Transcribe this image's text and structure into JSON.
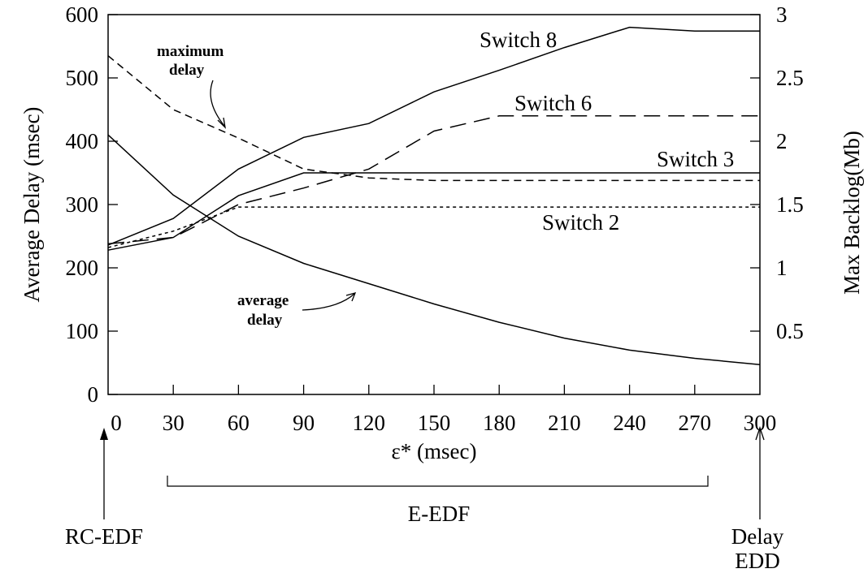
{
  "chart_data": {
    "type": "line",
    "xlabel": "ε* (msec)",
    "ylabel_left": "Average  Delay (msec)",
    "ylabel_right": "Max Backlog(Mb)",
    "xlim": [
      0,
      300
    ],
    "ylim_left": [
      0,
      600
    ],
    "ylim_right": [
      0,
      3
    ],
    "x_ticks": [
      0,
      30,
      60,
      90,
      120,
      150,
      180,
      210,
      240,
      270,
      300
    ],
    "y_ticks_left": [
      0,
      100,
      200,
      300,
      400,
      500,
      600
    ],
    "y_ticks_right": [
      0.5,
      1,
      1.5,
      2,
      2.5,
      3
    ],
    "grid": false,
    "series": [
      {
        "name": "Switch 8",
        "axis": "right",
        "style": "solid",
        "x": [
          0,
          30,
          60,
          90,
          120,
          150,
          180,
          210,
          240,
          270,
          300
        ],
        "y": [
          1.18,
          1.39,
          1.78,
          2.03,
          2.14,
          2.39,
          2.56,
          2.74,
          2.9,
          2.87,
          2.87
        ]
      },
      {
        "name": "Switch 6",
        "axis": "right",
        "style": "long-dash",
        "x": [
          0,
          30,
          60,
          90,
          120,
          150,
          180,
          210,
          240,
          270,
          300
        ],
        "y": [
          1.19,
          1.24,
          1.5,
          1.63,
          1.78,
          2.08,
          2.2,
          2.2,
          2.2,
          2.2,
          2.2
        ]
      },
      {
        "name": "Switch 3",
        "axis": "right",
        "style": "solid",
        "x": [
          0,
          30,
          60,
          90,
          120,
          150,
          180,
          210,
          240,
          270,
          300
        ],
        "y": [
          1.14,
          1.24,
          1.57,
          1.75,
          1.75,
          1.75,
          1.75,
          1.75,
          1.75,
          1.75,
          1.75
        ]
      },
      {
        "name": "Switch 2",
        "axis": "right",
        "style": "short-dash",
        "x": [
          0,
          30,
          60,
          90,
          120,
          150,
          180,
          210,
          240,
          270,
          300
        ],
        "y": [
          1.16,
          1.29,
          1.48,
          1.48,
          1.48,
          1.48,
          1.48,
          1.48,
          1.48,
          1.48,
          1.48
        ]
      },
      {
        "name": "maximum delay",
        "axis": "left",
        "style": "medium-dash",
        "x": [
          0,
          30,
          60,
          90,
          120,
          150,
          180,
          210,
          240,
          270,
          300
        ],
        "y": [
          535,
          450,
          405,
          356,
          342,
          338,
          338,
          338,
          338,
          338,
          338
        ]
      },
      {
        "name": "average delay",
        "axis": "left",
        "style": "solid",
        "x": [
          0,
          30,
          60,
          90,
          120,
          150,
          180,
          210,
          240,
          270,
          300
        ],
        "y": [
          410,
          315,
          250,
          207,
          175,
          143,
          114,
          89,
          70,
          57,
          47
        ]
      }
    ],
    "annotations": {
      "switch8": "Switch 8",
      "switch6": "Switch 6",
      "switch3": "Switch 3",
      "switch2": "Switch 2",
      "max_delay_line1": "maximum",
      "max_delay_line2": "delay",
      "avg_delay_line1": "average",
      "avg_delay_line2": "delay"
    },
    "bottom_labels": {
      "rc_edf": "RC-EDF",
      "e_edf": "E-EDF",
      "delay_edd_line1": "Delay",
      "delay_edd_line2": "EDD"
    }
  }
}
